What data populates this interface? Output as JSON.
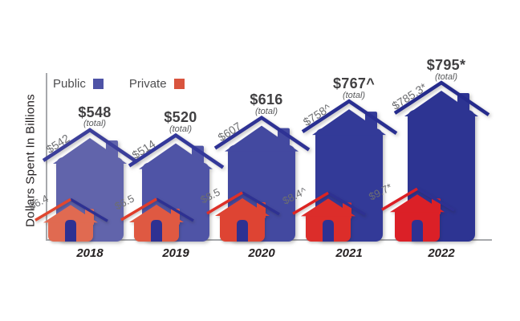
{
  "y_axis_label": "Dollars Spent In Billions",
  "legend": {
    "public_label": "Public",
    "private_label": "Private",
    "public_color": "#4e53a6",
    "private_color": "#d9543e"
  },
  "chart_data": {
    "type": "bar",
    "categories": [
      "2018",
      "2019",
      "2020",
      "2021",
      "2022"
    ],
    "ylabel": "Dollars Spent In Billions",
    "legend_position": "top-left",
    "grid": false,
    "units": "billions of dollars",
    "series": [
      {
        "name": "Public",
        "values": [
          542,
          514,
          607,
          758,
          785.3
        ],
        "point_labels": [
          "$542",
          "$514",
          "$607",
          "$758^",
          "$785.3*"
        ]
      },
      {
        "name": "Private",
        "values": [
          6.4,
          6.5,
          8.5,
          8.4,
          9.7
        ],
        "point_labels": [
          "$6.4",
          "$6.5",
          "$8.5",
          "$8.4^",
          "$9.7*"
        ]
      }
    ],
    "totals": {
      "values": [
        548,
        520,
        616,
        767,
        795
      ],
      "labels": [
        "$548",
        "$520",
        "$616",
        "$767^",
        "$795*"
      ],
      "sub_label": "(total)"
    }
  },
  "colors": {
    "public_by_year": [
      "#6164ab",
      "#4f54a6",
      "#4349a0",
      "#333a98",
      "#2d3492"
    ],
    "public_roof_accent_by_year": [
      "#3c3f9a",
      "#33389a",
      "#2e3294",
      "#292f91",
      "#252b8c"
    ],
    "private_by_year": [
      "#e06a51",
      "#df5942",
      "#de4433",
      "#dc2d2a",
      "#db2027"
    ],
    "private_roof_accent_by_year": [
      "#e0472f",
      "#df3c2a",
      "#de3028",
      "#dc2422",
      "#db1f25"
    ],
    "navy_accent": "#2e3192",
    "axis": "#a7a9ac",
    "total_text": "#414042",
    "rotated_label_text": "#6d6e71",
    "year_text": "#231f20",
    "legend_text": "#4d4d4f"
  }
}
